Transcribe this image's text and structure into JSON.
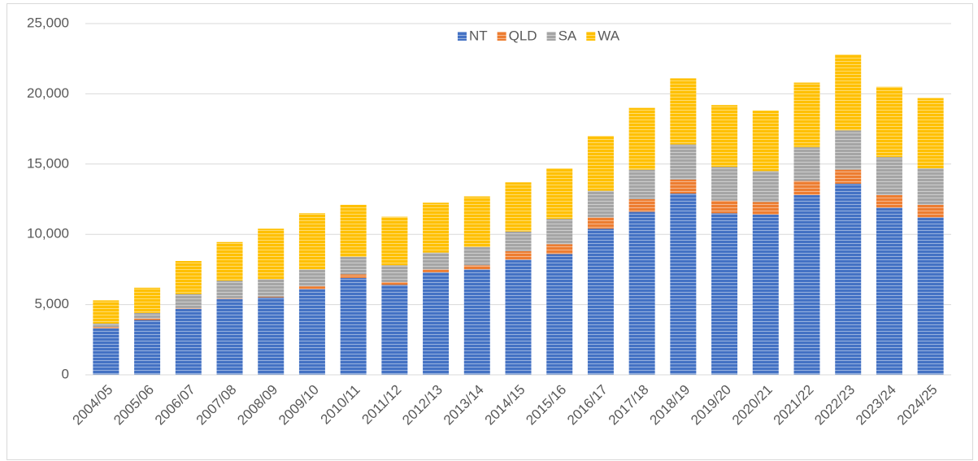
{
  "chart_data": {
    "type": "stacked_bar",
    "categories": [
      "2004/05",
      "2005/06",
      "2006/07",
      "2007/08",
      "2008/09",
      "2009/10",
      "2010/11",
      "2011/12",
      "2012/13",
      "2013/14",
      "2014/15",
      "2015/16",
      "2016/17",
      "2017/18",
      "2018/19",
      "2019/20",
      "2020/21",
      "2021/22",
      "2022/23",
      "2023/24",
      "2024/25"
    ],
    "series": [
      {
        "name": "NT",
        "color": "#4472c4",
        "values": [
          3300,
          3900,
          4700,
          5400,
          5500,
          6100,
          6900,
          6400,
          7300,
          7500,
          8200,
          8600,
          10400,
          11600,
          12900,
          11500,
          11400,
          12800,
          13600,
          11900,
          11200
        ]
      },
      {
        "name": "QLD",
        "color": "#ed7d31",
        "values": [
          100,
          100,
          50,
          50,
          50,
          200,
          250,
          200,
          200,
          300,
          600,
          700,
          800,
          900,
          1000,
          900,
          900,
          1000,
          1000,
          900,
          900
        ]
      },
      {
        "name": "SA",
        "color": "#a5a5a5",
        "values": [
          250,
          400,
          1000,
          1250,
          1250,
          1200,
          1250,
          1200,
          1200,
          1300,
          1400,
          1800,
          1900,
          2100,
          2500,
          2400,
          2200,
          2400,
          2800,
          2700,
          2600
        ]
      },
      {
        "name": "WA",
        "color": "#ffc000",
        "values": [
          1650,
          1800,
          2350,
          2750,
          3600,
          4000,
          3700,
          3450,
          3550,
          3600,
          3500,
          3600,
          3900,
          4400,
          4700,
          4400,
          4300,
          4600,
          5400,
          5000,
          5000
        ]
      }
    ],
    "ylim": [
      0,
      25000
    ],
    "yticks": [
      0,
      {
        "value": 5000,
        "label": "5,000"
      },
      {
        "value": 10000,
        "label": "10,000"
      },
      {
        "value": 15000,
        "label": "15,000"
      },
      {
        "value": 20000,
        "label": "20,000"
      },
      {
        "value": 25000,
        "label": "25,000"
      }
    ],
    "grid": true,
    "legend": "top"
  }
}
